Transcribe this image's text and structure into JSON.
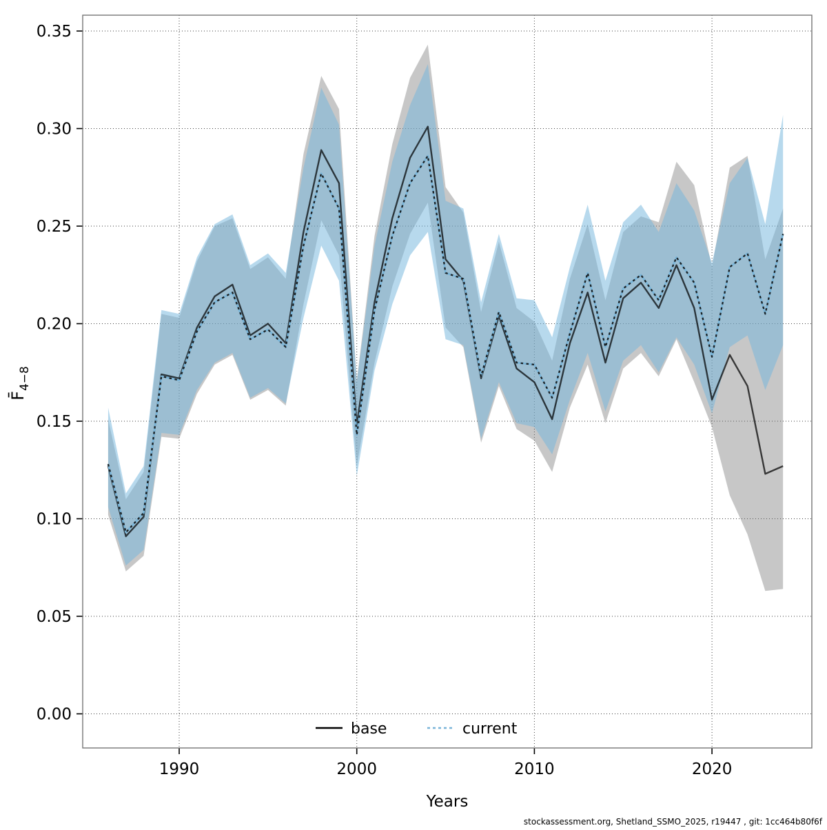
{
  "chart_data": {
    "type": "line",
    "title": "",
    "xlabel": "Years",
    "ylabel_main": "F̄",
    "ylabel_sub": "4−8",
    "footer": "stockassessment.org, Shetland_SSMO_2025, r19447 , git: 1cc464b80f6f",
    "legend": {
      "base_label": "base",
      "current_label": "current",
      "position": "bottom-center-inside"
    },
    "grid": "dotted",
    "xlim": [
      1985.5,
      2025.7
    ],
    "ylim": [
      -0.015,
      0.357
    ],
    "x_ticks": [
      1990,
      2000,
      2010,
      2020
    ],
    "y_ticks": [
      0.0,
      0.05,
      0.1,
      0.15,
      0.2,
      0.25,
      0.3,
      0.35
    ],
    "y_tick_labels": [
      "0.00",
      "0.05",
      "0.10",
      "0.15",
      "0.20",
      "0.25",
      "0.30",
      "0.35"
    ],
    "years": [
      1986,
      1987,
      1988,
      1989,
      1990,
      1991,
      1992,
      1993,
      1994,
      1995,
      1996,
      1997,
      1998,
      1999,
      2000,
      2001,
      2002,
      2003,
      2004,
      2005,
      2006,
      2007,
      2008,
      2009,
      2010,
      2011,
      2012,
      2013,
      2014,
      2015,
      2016,
      2017,
      2018,
      2019,
      2020,
      2021,
      2022,
      2023,
      2024
    ],
    "series": [
      {
        "name": "base",
        "style": "solid",
        "color": "#000000",
        "opacity": 0.72,
        "values": [
          0.127,
          0.091,
          0.101,
          0.174,
          0.172,
          0.198,
          0.214,
          0.22,
          0.194,
          0.2,
          0.19,
          0.247,
          0.289,
          0.272,
          0.148,
          0.211,
          0.254,
          0.285,
          0.301,
          0.233,
          0.222,
          0.172,
          0.204,
          0.177,
          0.17,
          0.151,
          0.19,
          0.216,
          0.18,
          0.213,
          0.221,
          0.208,
          0.23,
          0.208,
          0.161,
          0.184,
          0.168,
          0.123,
          0.127
        ]
      },
      {
        "name": "current",
        "style": "dashed",
        "color": "#78b4d8",
        "overlay_dash_color": "#111111",
        "values": [
          0.128,
          0.093,
          0.103,
          0.173,
          0.171,
          0.196,
          0.211,
          0.216,
          0.192,
          0.197,
          0.188,
          0.24,
          0.277,
          0.259,
          0.143,
          0.207,
          0.245,
          0.272,
          0.286,
          0.226,
          0.223,
          0.173,
          0.206,
          0.18,
          0.179,
          0.162,
          0.195,
          0.226,
          0.188,
          0.218,
          0.225,
          0.212,
          0.234,
          0.221,
          0.183,
          0.229,
          0.236,
          0.205,
          0.246
        ]
      }
    ],
    "bands": [
      {
        "name": "base-ci",
        "color": "#7a7a7a",
        "opacity": 0.42,
        "lo": [
          0.102,
          0.073,
          0.081,
          0.142,
          0.141,
          0.164,
          0.179,
          0.184,
          0.161,
          0.166,
          0.158,
          0.21,
          0.253,
          0.235,
          0.127,
          0.18,
          0.219,
          0.246,
          0.262,
          0.198,
          0.188,
          0.139,
          0.168,
          0.146,
          0.14,
          0.124,
          0.157,
          0.179,
          0.149,
          0.177,
          0.185,
          0.173,
          0.192,
          0.17,
          0.147,
          0.112,
          0.092,
          0.063,
          0.064
        ],
        "hi": [
          0.151,
          0.11,
          0.124,
          0.205,
          0.203,
          0.232,
          0.25,
          0.254,
          0.228,
          0.234,
          0.223,
          0.287,
          0.327,
          0.31,
          0.171,
          0.245,
          0.292,
          0.326,
          0.343,
          0.27,
          0.257,
          0.206,
          0.242,
          0.208,
          0.201,
          0.181,
          0.223,
          0.251,
          0.212,
          0.247,
          0.255,
          0.252,
          0.283,
          0.271,
          0.229,
          0.28,
          0.286,
          0.233,
          0.259
        ]
      },
      {
        "name": "current-ci",
        "color": "#74b6dd",
        "opacity": 0.52,
        "lo": [
          0.106,
          0.076,
          0.084,
          0.144,
          0.143,
          0.166,
          0.18,
          0.185,
          0.162,
          0.167,
          0.159,
          0.203,
          0.24,
          0.222,
          0.122,
          0.176,
          0.21,
          0.235,
          0.247,
          0.192,
          0.189,
          0.141,
          0.17,
          0.149,
          0.147,
          0.133,
          0.161,
          0.185,
          0.155,
          0.181,
          0.189,
          0.175,
          0.193,
          0.179,
          0.154,
          0.188,
          0.194,
          0.166,
          0.189
        ],
        "hi": [
          0.157,
          0.113,
          0.127,
          0.207,
          0.205,
          0.234,
          0.251,
          0.256,
          0.23,
          0.236,
          0.226,
          0.28,
          0.321,
          0.302,
          0.17,
          0.24,
          0.283,
          0.312,
          0.333,
          0.263,
          0.259,
          0.211,
          0.246,
          0.213,
          0.212,
          0.193,
          0.229,
          0.261,
          0.222,
          0.252,
          0.261,
          0.247,
          0.272,
          0.258,
          0.231,
          0.272,
          0.285,
          0.251,
          0.307
        ]
      }
    ]
  }
}
